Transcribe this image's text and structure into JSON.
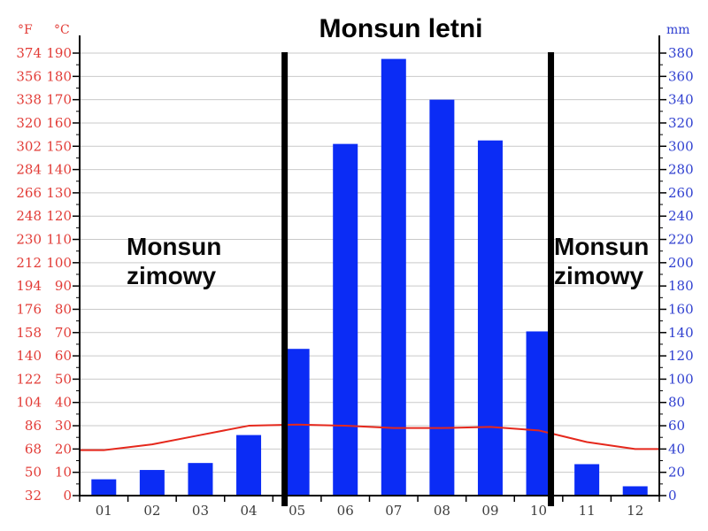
{
  "header": {
    "title": "Monsun letni"
  },
  "annotations": {
    "left": {
      "line1": "Monsun",
      "line2": "zimowy"
    },
    "right": {
      "line1": "Monsun",
      "line2": "zimowy"
    }
  },
  "axis_headers": {
    "fahrenheit": "°F",
    "celsius": "°C",
    "millimeters": "mm"
  },
  "chart_data": {
    "type": "bar",
    "title": "Monsun letni",
    "categories": [
      "01",
      "02",
      "03",
      "04",
      "05",
      "06",
      "07",
      "08",
      "09",
      "10",
      "11",
      "12"
    ],
    "series": [
      {
        "name": "precipitation",
        "type": "bar",
        "unit": "mm",
        "color": "#0b2cf5",
        "values": [
          14,
          22,
          28,
          52,
          126,
          302,
          375,
          340,
          305,
          141,
          27,
          8
        ]
      },
      {
        "name": "temperature",
        "type": "line",
        "unit": "°C",
        "color": "#e5281c",
        "values": [
          19.5,
          22,
          26,
          30,
          30.5,
          30,
          29,
          29,
          29.5,
          28,
          23,
          20
        ]
      }
    ],
    "y_left": {
      "unit_f": "°F",
      "unit_c": "°C",
      "c_ticks": [
        0,
        10,
        20,
        30,
        40,
        50,
        60,
        70,
        80,
        90,
        100,
        110,
        120,
        130,
        140,
        150,
        160,
        170,
        180,
        190
      ],
      "f_ticks": [
        32,
        50,
        68,
        86,
        104,
        122,
        140,
        158,
        176,
        194,
        212,
        230,
        248,
        266,
        284,
        302,
        320,
        338,
        356,
        374
      ],
      "range_c": [
        0,
        190
      ]
    },
    "y_right": {
      "unit": "mm",
      "ticks": [
        0,
        20,
        40,
        60,
        80,
        100,
        120,
        140,
        160,
        180,
        200,
        220,
        240,
        260,
        280,
        300,
        320,
        340,
        360,
        380
      ],
      "range_mm": [
        0,
        380
      ]
    },
    "season_lines": {
      "left_line_month": "05",
      "right_line_month": "10"
    },
    "grid": true,
    "legend": "none",
    "colors": {
      "bar": "#0b2cf5",
      "line": "#e5281c",
      "left_axis_labels": "#e23b36",
      "right_axis_labels": "#3040d0",
      "gridline": "#c9c9c9",
      "month_labels": "#3c3c3c",
      "season_line": "#000000"
    }
  }
}
